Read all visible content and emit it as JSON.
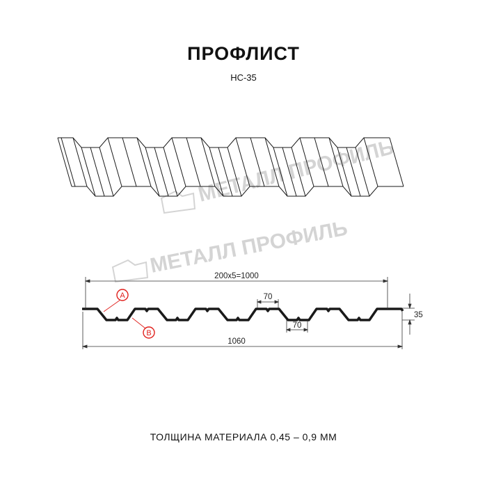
{
  "title": "ПРОФЛИСТ",
  "subtitle": "НС-35",
  "footer": "ТОЛЩИНА МАТЕРИАЛА 0,45 – 0,9 ММ",
  "watermark": "МЕТАЛЛ ПРОФИЛЬ",
  "dimensions": {
    "pitch_total": "200x5=1000",
    "crest_width": "70",
    "trough_width": "70",
    "height": "35",
    "total_width": "1060"
  },
  "markers": {
    "a": "A",
    "b": "B"
  },
  "colors": {
    "line": "#1a1a1a",
    "marker": "#e0201c",
    "watermark": "#d4d4d4"
  }
}
